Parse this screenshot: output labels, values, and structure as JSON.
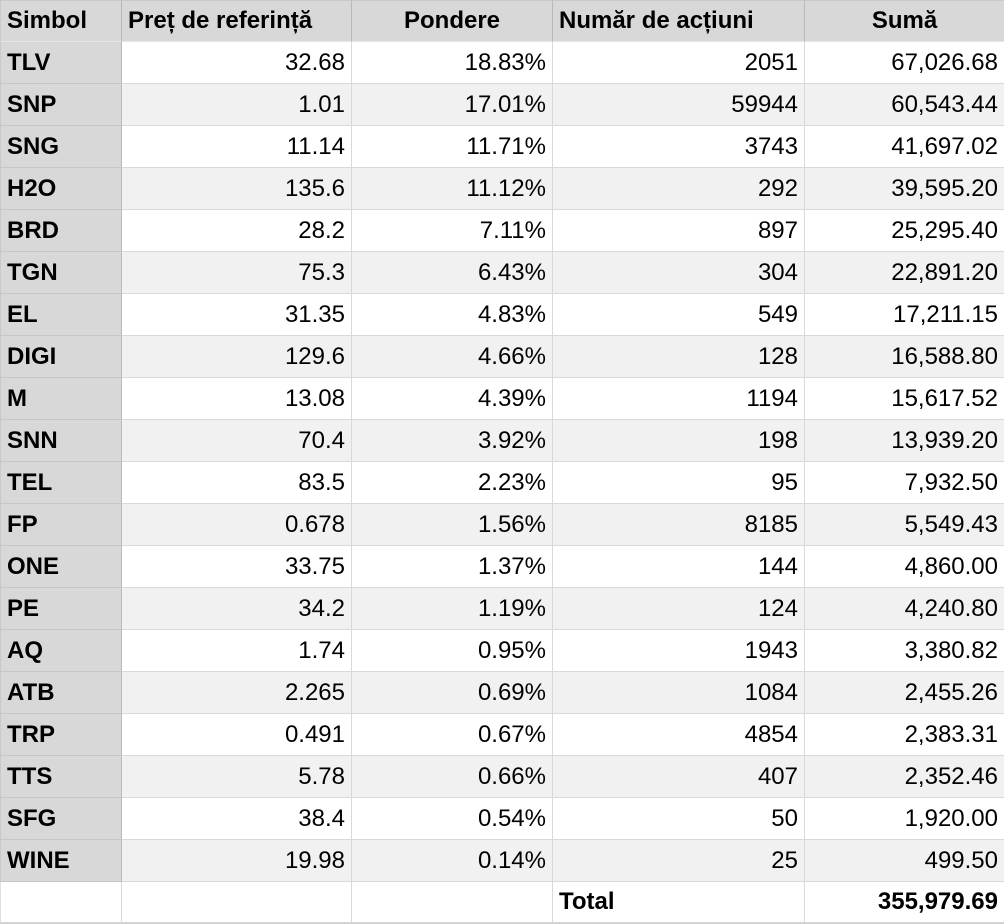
{
  "chart_data": {
    "type": "table",
    "title": "",
    "columns": [
      "Simbol",
      "Preț de referință",
      "Pondere",
      "Număr de acțiuni",
      "Sumă"
    ],
    "rows": [
      [
        "TLV",
        "32.68",
        "18.83%",
        "2051",
        "67,026.68"
      ],
      [
        "SNP",
        "1.01",
        "17.01%",
        "59944",
        "60,543.44"
      ],
      [
        "SNG",
        "11.14",
        "11.71%",
        "3743",
        "41,697.02"
      ],
      [
        "H2O",
        "135.6",
        "11.12%",
        "292",
        "39,595.20"
      ],
      [
        "BRD",
        "28.2",
        "7.11%",
        "897",
        "25,295.40"
      ],
      [
        "TGN",
        "75.3",
        "6.43%",
        "304",
        "22,891.20"
      ],
      [
        "EL",
        "31.35",
        "4.83%",
        "549",
        "17,211.15"
      ],
      [
        "DIGI",
        "129.6",
        "4.66%",
        "128",
        "16,588.80"
      ],
      [
        "M",
        "13.08",
        "4.39%",
        "1194",
        "15,617.52"
      ],
      [
        "SNN",
        "70.4",
        "3.92%",
        "198",
        "13,939.20"
      ],
      [
        "TEL",
        "83.5",
        "2.23%",
        "95",
        "7,932.50"
      ],
      [
        "FP",
        "0.678",
        "1.56%",
        "8185",
        "5,549.43"
      ],
      [
        "ONE",
        "33.75",
        "1.37%",
        "144",
        "4,860.00"
      ],
      [
        "PE",
        "34.2",
        "1.19%",
        "124",
        "4,240.80"
      ],
      [
        "AQ",
        "1.74",
        "0.95%",
        "1943",
        "3,380.82"
      ],
      [
        "ATB",
        "2.265",
        "0.69%",
        "1084",
        "2,455.26"
      ],
      [
        "TRP",
        "0.491",
        "0.67%",
        "4854",
        "2,383.31"
      ],
      [
        "TTS",
        "5.78",
        "0.66%",
        "407",
        "2,352.46"
      ],
      [
        "SFG",
        "38.4",
        "0.54%",
        "50",
        "1,920.00"
      ],
      [
        "WINE",
        "19.98",
        "0.14%",
        "25",
        "499.50"
      ]
    ],
    "total_label": "Total",
    "total_value": "355,979.69",
    "layout_hints": {
      "banded_rows": true,
      "header_align": [
        "left",
        "left",
        "center",
        "left",
        "center"
      ],
      "body_align": [
        "left",
        "right",
        "right",
        "right",
        "right"
      ]
    }
  },
  "colors": {
    "header_bg": "#d8d8d8",
    "symbol_column_bg": "#d8d8d8",
    "band_bg": "#f1f1f2",
    "grid_line": "#d9d9d9",
    "text": "#000000"
  }
}
